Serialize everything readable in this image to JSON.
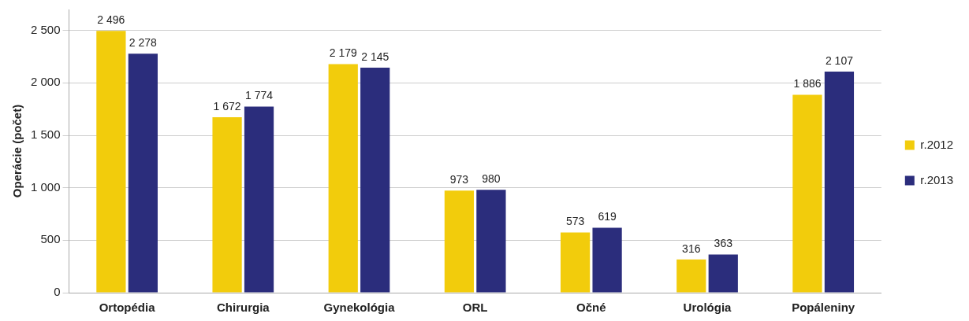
{
  "chart_data": {
    "type": "bar",
    "ylabel": "Operácie (počet)",
    "categories": [
      "Ortopédia",
      "Chirurgia",
      "Gynekológia",
      "ORL",
      "Očné",
      "Urológia",
      "Popáleniny"
    ],
    "series": [
      {
        "name": "r.2012",
        "color": "#f2cc0c",
        "values": [
          2496,
          1672,
          2179,
          973,
          573,
          316,
          1886
        ],
        "value_labels": [
          "2 496",
          "1 672",
          "2 179",
          "973",
          "573",
          "316",
          "1 886"
        ]
      },
      {
        "name": "r.2013",
        "color": "#2b2d7c",
        "values": [
          2278,
          1774,
          2145,
          980,
          619,
          363,
          2107
        ],
        "value_labels": [
          "2 278",
          "1 774",
          "2 145",
          "980",
          "619",
          "363",
          "2 107"
        ]
      }
    ],
    "ylim": [
      0,
      2700
    ],
    "yticks": [
      0,
      500,
      {
        "value": 1000,
        "label": "1 000"
      },
      {
        "value": 1500,
        "label": "1 500"
      },
      {
        "value": 2000,
        "label": "2 000"
      },
      {
        "value": 2500,
        "label": "2 500"
      }
    ],
    "grid": "y",
    "legend": "right"
  }
}
